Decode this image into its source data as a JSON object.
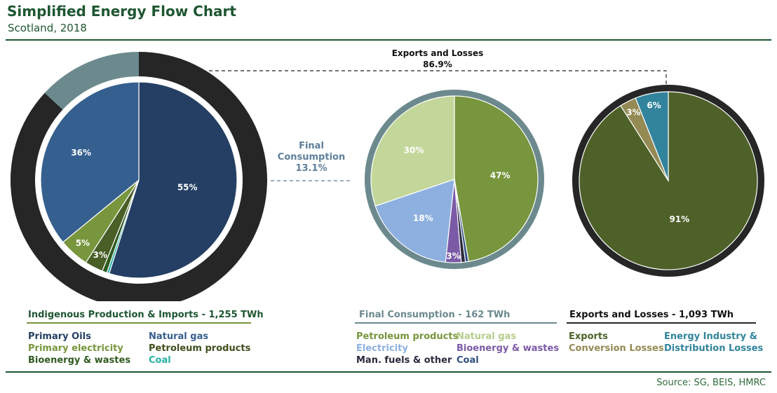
{
  "header": {
    "title": "Simplified Energy Flow Chart",
    "subtitle": "Scotland, 2018"
  },
  "source": "Source: SG, BEIS, HMRC",
  "colors": {
    "brand": "#1e5631",
    "outer_ring": "#262626",
    "final_ring": "#6c8a8e",
    "primary_oils": "#243f63",
    "natural_gas_primary": "#355f8f",
    "primary_electricity": "#77963d",
    "petroleum_products_primary": "#4a5e27",
    "bioenergy_primary": "#2f5a1f",
    "coal_primary": "#25b0a3",
    "petroleum_products_final": "#77963d",
    "natural_gas_final": "#c4d79b",
    "electricity_final": "#8db0e0",
    "bioenergy_final": "#7b5aa6",
    "man_fuels_final": "#2b2a3e",
    "coal_final": "#2f4f80",
    "exports": "#4e6128",
    "conversion_losses": "#948a54",
    "distribution_losses": "#31849b"
  },
  "annotations": {
    "exports_losses_label": "Exports and Losses",
    "exports_losses_pct": "86.9%",
    "final_consumption_label_line1": "Final",
    "final_consumption_label_line2": "Consumption",
    "final_consumption_pct": "13.1%"
  },
  "panels": {
    "production": {
      "heading": "Indigenous Production & Imports - 1,255 TWh",
      "legend": [
        {
          "label": "Primary Oils",
          "color": "#243f63"
        },
        {
          "label": "Natural gas",
          "color": "#355f8f"
        },
        {
          "label": "Primary electricity",
          "color": "#77963d"
        },
        {
          "label": "Petroleum products",
          "color": "#3d4f1c"
        },
        {
          "label": "Bioenergy & wastes",
          "color": "#2f5a1f"
        },
        {
          "label": "Coal",
          "color": "#25b0a3"
        }
      ]
    },
    "final": {
      "heading": "Final Consumption - 162 TWh",
      "legend": [
        {
          "label": "Petroleum products",
          "color": "#77963d"
        },
        {
          "label": "Natural gas",
          "color": "#b8cc8c"
        },
        {
          "label": "Electricity",
          "color": "#8db0e0"
        },
        {
          "label": "Bioenergy & wastes",
          "color": "#7b5aa6"
        },
        {
          "label": "Man. fuels & other",
          "color": "#2b2a3e"
        },
        {
          "label": "Coal",
          "color": "#2f4f80"
        }
      ]
    },
    "exports": {
      "heading": "Exports and Losses - 1,093 TWh",
      "legend": [
        {
          "label": "Exports",
          "color": "#4e6128"
        },
        {
          "label": "Conversion Losses",
          "color": "#948a54"
        },
        {
          "label": "Energy Industry &",
          "color": "#31849b"
        },
        {
          "label": "Distribution Losses",
          "color": "#31849b"
        }
      ]
    }
  },
  "chart_data": [
    {
      "type": "pie",
      "title": "Indigenous Production & Imports - 1,255 TWh",
      "ring": [
        {
          "name": "Exports and Losses",
          "value": 86.9,
          "label": "86.9%"
        },
        {
          "name": "Final Consumption",
          "value": 13.1,
          "label": "13.1%"
        }
      ],
      "slices": [
        {
          "name": "Primary Oils",
          "value": 55,
          "label": "55%"
        },
        {
          "name": "Coal",
          "value": 0.4,
          "label": ""
        },
        {
          "name": "Bioenergy & wastes",
          "value": 0.8,
          "label": ""
        },
        {
          "name": "Petroleum products",
          "value": 3,
          "label": "3%"
        },
        {
          "name": "Primary electricity",
          "value": 5,
          "label": "5%"
        },
        {
          "name": "Natural gas",
          "value": 36,
          "label": "36%"
        }
      ]
    },
    {
      "type": "pie",
      "title": "Final Consumption - 162 TWh",
      "slices": [
        {
          "name": "Petroleum products",
          "value": 47,
          "label": "47%"
        },
        {
          "name": "Coal",
          "value": 0.6,
          "label": ""
        },
        {
          "name": "Man. fuels & other",
          "value": 0.8,
          "label": ""
        },
        {
          "name": "Bioenergy & wastes",
          "value": 3,
          "label": "3%"
        },
        {
          "name": "Electricity",
          "value": 18,
          "label": "18%"
        },
        {
          "name": "Natural gas",
          "value": 30,
          "label": "30%"
        }
      ]
    },
    {
      "type": "pie",
      "title": "Exports and Losses - 1,093 TWh",
      "slices": [
        {
          "name": "Exports",
          "value": 91,
          "label": "91%"
        },
        {
          "name": "Conversion Losses",
          "value": 3,
          "label": "3%"
        },
        {
          "name": "Energy Industry & Distribution Losses",
          "value": 6,
          "label": "6%"
        }
      ]
    }
  ]
}
